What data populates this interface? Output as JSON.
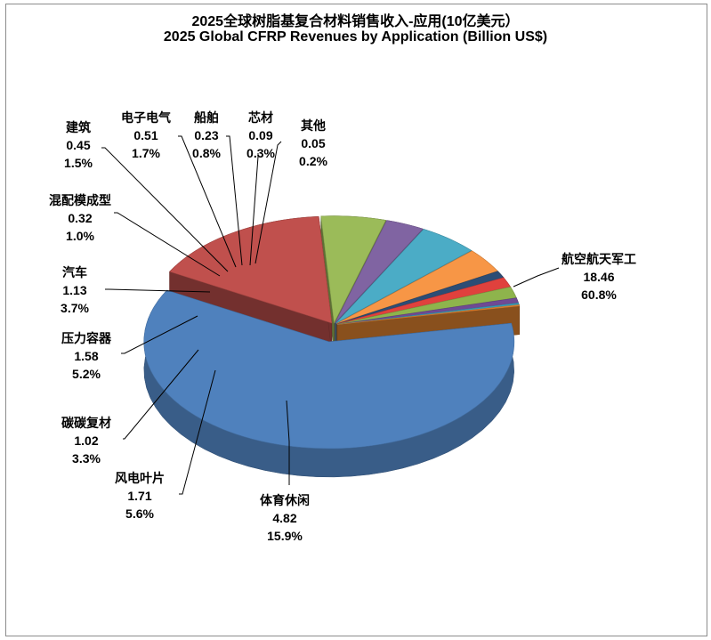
{
  "chart_data": {
    "type": "pie",
    "title": "2025全球树脂基复合材料销售收入-应用(10亿美元）",
    "subtitle": "2025 Global CFRP Revenues by Application (Billion US$)",
    "style": "3d-exploded",
    "slices": [
      {
        "label": "航空航天军工",
        "value": "18.46",
        "percent": "60.8%",
        "color": "#4f81bd"
      },
      {
        "label": "体育休闲",
        "value": "4.82",
        "percent": "15.9%",
        "color": "#c0504d"
      },
      {
        "label": "风电叶片",
        "value": "1.71",
        "percent": "5.6%",
        "color": "#9bbb59"
      },
      {
        "label": "碳碳复材",
        "value": "1.02",
        "percent": "3.3%",
        "color": "#8064a2"
      },
      {
        "label": "压力容器",
        "value": "1.58",
        "percent": "5.2%",
        "color": "#4bacc6"
      },
      {
        "label": "汽车",
        "value": "1.13",
        "percent": "3.7%",
        "color": "#f79646"
      },
      {
        "label": "混配模成型",
        "value": "0.32",
        "percent": "1.0%",
        "color": "#2c4d75"
      },
      {
        "label": "建筑",
        "value": "0.45",
        "percent": "1.5%",
        "color": "#e0413d"
      },
      {
        "label": "电子电气",
        "value": "0.51",
        "percent": "1.7%",
        "color": "#8eb44c"
      },
      {
        "label": "船舶",
        "value": "0.23",
        "percent": "0.8%",
        "color": "#6f4a94"
      },
      {
        "label": "芯材",
        "value": "0.09",
        "percent": "0.3%",
        "color": "#3a9bb5"
      },
      {
        "label": "其他",
        "value": "0.05",
        "percent": "0.2%",
        "color": "#e58531"
      }
    ]
  }
}
